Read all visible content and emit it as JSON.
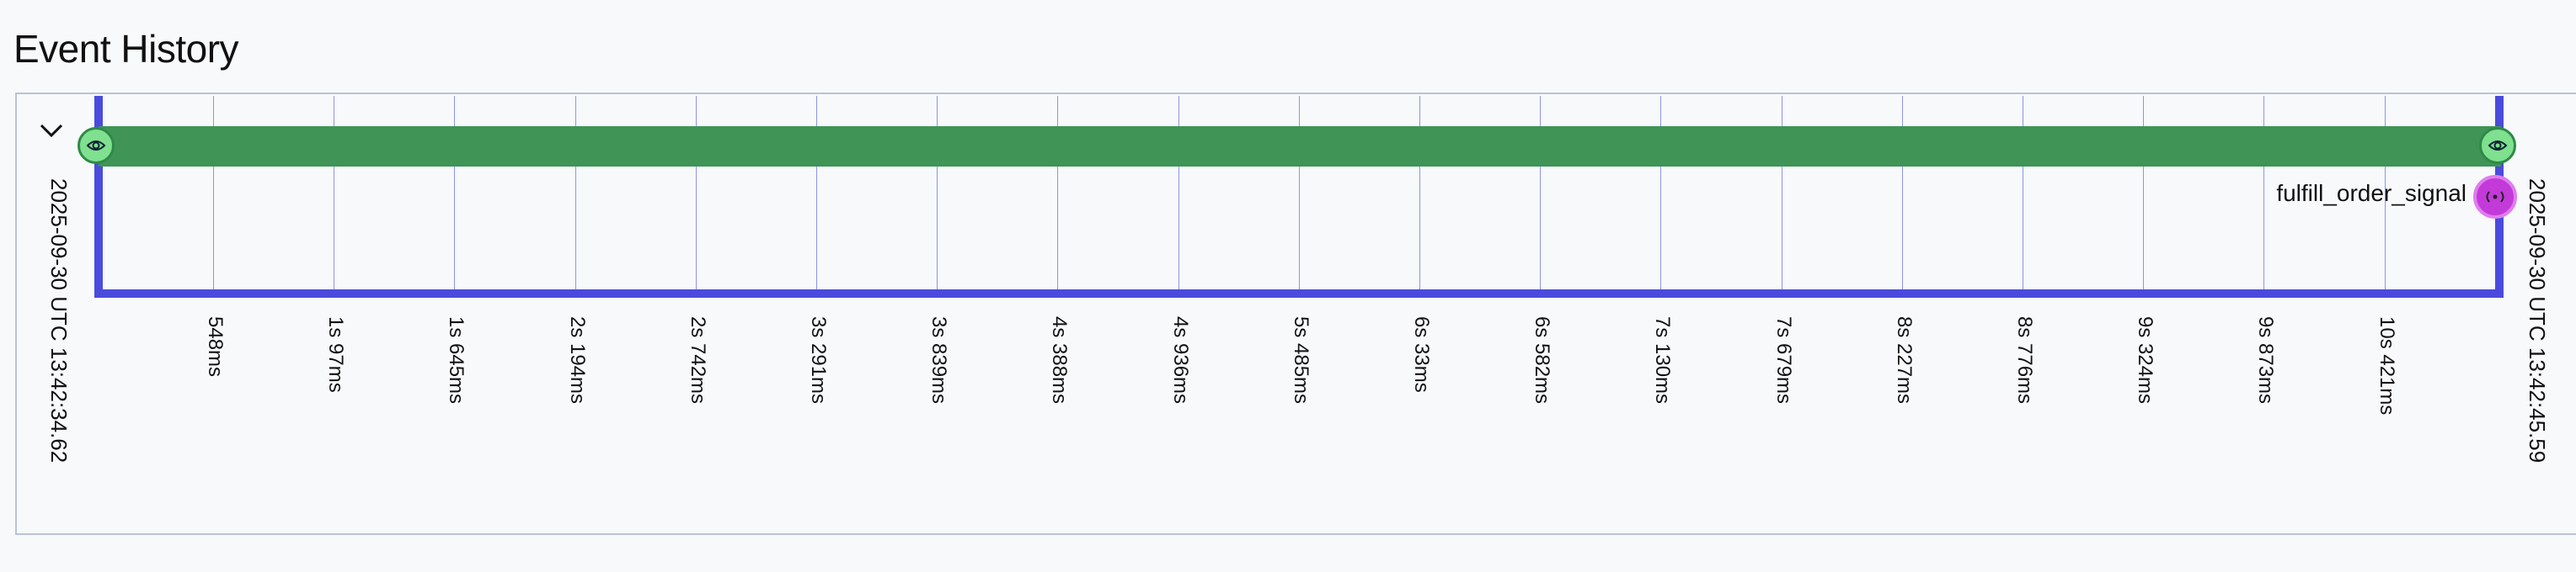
{
  "page": {
    "title": "Event History"
  },
  "timeline": {
    "start_label": "2025-09-30 UTC 13:42:34.62",
    "end_label": "2025-09-30 UTC 13:42:45.59",
    "ticks": [
      "548ms",
      "1s 97ms",
      "1s 645ms",
      "2s 194ms",
      "2s 742ms",
      "3s 291ms",
      "3s 839ms",
      "4s 388ms",
      "4s 936ms",
      "5s 485ms",
      "6s 33ms",
      "6s 582ms",
      "7s 130ms",
      "7s 679ms",
      "8s 227ms",
      "8s 776ms",
      "9s 324ms",
      "9s 873ms",
      "10s 421ms"
    ],
    "signal_label": "fulfill_order_signal",
    "colors": {
      "frame": "#4a4bdc",
      "bar": "#3f9456",
      "marker": "#7fe08f",
      "signal": "#c23ad8",
      "grid": "#8e93e8"
    },
    "icons": {
      "collapse": "chevron-down-icon",
      "event": "eye-icon",
      "signal": "signal-icon"
    }
  }
}
